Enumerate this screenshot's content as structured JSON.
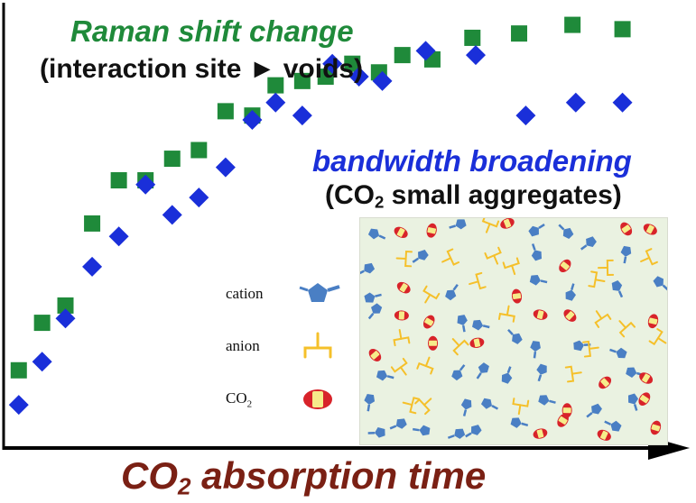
{
  "annotations": {
    "raman_title": "Raman shift change",
    "raman_sub": "(interaction site ► voids)",
    "bandwidth_title": "bandwidth broadening",
    "bandwidth_sub_pre": "(CO",
    "bandwidth_sub_sub": "2",
    "bandwidth_sub_post": " small aggregates)"
  },
  "x_axis": {
    "label_pre": "CO",
    "label_sub": "2",
    "label_post": " absorption time"
  },
  "legend": {
    "cation": "cation",
    "anion": "anion",
    "co2_pre": "CO",
    "co2_sub": "2"
  },
  "colors": {
    "raman_series": "#1f8a3a",
    "bandwidth_series": "#1a2fd9",
    "axis": "#000000",
    "xlabel": "#7a2014",
    "cation": "#4a7fc4",
    "anion": "#f5c02a",
    "co2_outer": "#d8232a",
    "co2_inner": "#f6ec8a",
    "inset_bg": "#eaf2e1"
  },
  "chart_data": {
    "type": "scatter",
    "title": "",
    "xlabel": "CO2 absorption time",
    "ylabel": "",
    "axis_numbers_shown": false,
    "xlim": [
      0,
      100
    ],
    "ylim": [
      0,
      100
    ],
    "series": [
      {
        "name": "Raman shift change",
        "marker": "square",
        "x": [
          2,
          5.5,
          9,
          13,
          17,
          21,
          25,
          29,
          33,
          37,
          40.5,
          44.5,
          48,
          52,
          56,
          59.5,
          64,
          70,
          77,
          85,
          92.5
        ],
        "y": [
          18,
          29,
          33,
          52,
          62,
          62,
          67,
          69,
          78,
          77,
          84,
          85,
          86,
          89,
          87,
          91,
          90,
          95,
          96,
          98,
          97
        ]
      },
      {
        "name": "bandwidth broadening",
        "marker": "diamond",
        "x": [
          2,
          5.5,
          9,
          13,
          17,
          21,
          25,
          29,
          33,
          37,
          40.5,
          44.5,
          49,
          53,
          56.5,
          63,
          70.5,
          78,
          85.5,
          92.5
        ],
        "y": [
          10,
          20,
          30,
          42,
          49,
          61,
          54,
          58,
          65,
          76,
          80,
          77,
          89,
          86,
          85,
          92,
          91,
          77,
          80,
          80
        ]
      }
    ]
  }
}
